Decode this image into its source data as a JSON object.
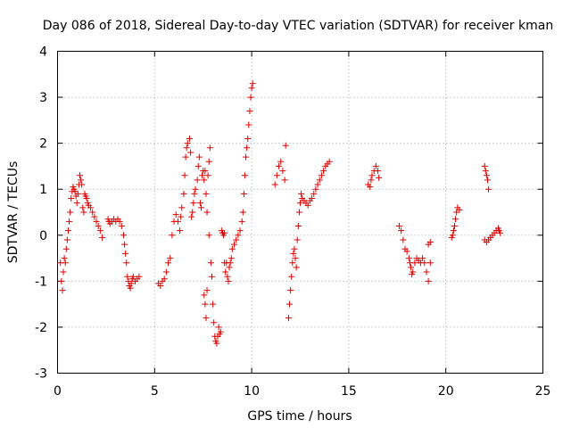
{
  "chart_data": {
    "type": "scatter",
    "title": "Day 086 of 2018, Sidereal Day-to-day VTEC variation (SDTVAR) for receiver kman",
    "xlabel": "GPS time / hours",
    "ylabel": "SDTVAR / TECUs",
    "xlim": [
      0,
      25
    ],
    "ylim": [
      -3,
      4
    ],
    "xticks": [
      0,
      5,
      10,
      15,
      20,
      25
    ],
    "xtick_labels": [
      "0",
      "5",
      "10",
      "15",
      "20",
      "25"
    ],
    "yticks": [
      -3,
      -2,
      -1,
      0,
      1,
      2,
      3,
      4
    ],
    "ytick_labels": [
      "-3",
      "-2",
      "-1",
      "0",
      "1",
      "2",
      "3",
      "4"
    ],
    "grid": true,
    "marker": "+",
    "color": "#e00000",
    "series": [
      {
        "name": "kman",
        "points": [
          [
            0.15,
            -0.6
          ],
          [
            0.2,
            -1.0
          ],
          [
            0.25,
            -1.2
          ],
          [
            0.3,
            -0.8
          ],
          [
            0.35,
            -0.5
          ],
          [
            0.4,
            -0.6
          ],
          [
            0.45,
            -0.3
          ],
          [
            0.5,
            -0.1
          ],
          [
            0.55,
            0.1
          ],
          [
            0.6,
            0.3
          ],
          [
            0.65,
            0.5
          ],
          [
            0.7,
            0.8
          ],
          [
            0.75,
            0.95
          ],
          [
            0.8,
            1.05
          ],
          [
            0.85,
            1.0
          ],
          [
            0.9,
            0.95
          ],
          [
            0.95,
            0.85
          ],
          [
            1.0,
            0.7
          ],
          [
            1.05,
            0.9
          ],
          [
            1.1,
            1.1
          ],
          [
            1.15,
            1.3
          ],
          [
            1.2,
            1.2
          ],
          [
            1.25,
            1.1
          ],
          [
            1.3,
            0.6
          ],
          [
            1.35,
            0.5
          ],
          [
            1.4,
            0.9
          ],
          [
            1.45,
            0.85
          ],
          [
            1.5,
            0.8
          ],
          [
            1.55,
            0.7
          ],
          [
            1.6,
            0.65
          ],
          [
            1.7,
            0.6
          ],
          [
            1.8,
            0.5
          ],
          [
            1.9,
            0.4
          ],
          [
            2.0,
            0.3
          ],
          [
            2.1,
            0.2
          ],
          [
            2.2,
            0.1
          ],
          [
            2.3,
            -0.05
          ],
          [
            2.6,
            0.35
          ],
          [
            2.65,
            0.3
          ],
          [
            2.7,
            0.25
          ],
          [
            2.8,
            0.3
          ],
          [
            2.9,
            0.35
          ],
          [
            3.0,
            0.3
          ],
          [
            3.1,
            0.35
          ],
          [
            3.2,
            0.3
          ],
          [
            3.3,
            0.2
          ],
          [
            3.4,
            0.0
          ],
          [
            3.45,
            -0.2
          ],
          [
            3.5,
            -0.4
          ],
          [
            3.55,
            -0.6
          ],
          [
            3.6,
            -0.9
          ],
          [
            3.65,
            -1.0
          ],
          [
            3.7,
            -1.1
          ],
          [
            3.75,
            -1.15
          ],
          [
            3.8,
            -1.05
          ],
          [
            3.85,
            -0.95
          ],
          [
            3.9,
            -0.9
          ],
          [
            4.0,
            -1.0
          ],
          [
            4.1,
            -0.95
          ],
          [
            4.2,
            -0.9
          ],
          [
            5.2,
            -1.05
          ],
          [
            5.3,
            -1.1
          ],
          [
            5.4,
            -1.0
          ],
          [
            5.5,
            -0.95
          ],
          [
            5.6,
            -0.8
          ],
          [
            5.7,
            -0.6
          ],
          [
            5.8,
            -0.5
          ],
          [
            5.9,
            0.0
          ],
          [
            6.0,
            0.3
          ],
          [
            6.1,
            0.45
          ],
          [
            6.2,
            0.3
          ],
          [
            6.3,
            0.1
          ],
          [
            6.35,
            0.4
          ],
          [
            6.4,
            0.6
          ],
          [
            6.5,
            0.9
          ],
          [
            6.55,
            1.3
          ],
          [
            6.6,
            1.7
          ],
          [
            6.65,
            1.9
          ],
          [
            6.7,
            2.0
          ],
          [
            6.8,
            2.1
          ],
          [
            6.85,
            1.8
          ],
          [
            6.9,
            0.4
          ],
          [
            6.95,
            0.5
          ],
          [
            7.0,
            0.7
          ],
          [
            7.05,
            0.9
          ],
          [
            7.1,
            1.0
          ],
          [
            7.2,
            1.2
          ],
          [
            7.25,
            1.5
          ],
          [
            7.3,
            1.7
          ],
          [
            7.35,
            0.7
          ],
          [
            7.4,
            0.6
          ],
          [
            7.45,
            1.3
          ],
          [
            7.5,
            1.4
          ],
          [
            7.55,
            1.2
          ],
          [
            7.6,
            1.4
          ],
          [
            7.65,
            0.9
          ],
          [
            7.7,
            0.5
          ],
          [
            7.75,
            1.3
          ],
          [
            7.8,
            1.6
          ],
          [
            7.85,
            1.9
          ],
          [
            7.55,
            -1.3
          ],
          [
            7.6,
            -1.5
          ],
          [
            7.65,
            -1.8
          ],
          [
            7.7,
            -1.2
          ],
          [
            7.8,
            0.0
          ],
          [
            7.9,
            -0.6
          ],
          [
            7.95,
            -0.9
          ],
          [
            8.0,
            -1.5
          ],
          [
            8.05,
            -1.9
          ],
          [
            8.1,
            -2.2
          ],
          [
            8.15,
            -2.3
          ],
          [
            8.2,
            -2.35
          ],
          [
            8.25,
            -2.2
          ],
          [
            8.3,
            -2.0
          ],
          [
            8.35,
            -2.15
          ],
          [
            8.4,
            -2.1
          ],
          [
            8.45,
            0.1
          ],
          [
            8.5,
            0.05
          ],
          [
            8.55,
            0.0
          ],
          [
            8.6,
            0.05
          ],
          [
            8.6,
            -0.6
          ],
          [
            8.65,
            -0.8
          ],
          [
            8.7,
            -0.6
          ],
          [
            8.75,
            -0.9
          ],
          [
            8.8,
            -1.0
          ],
          [
            8.85,
            -0.7
          ],
          [
            8.9,
            -0.6
          ],
          [
            8.95,
            -0.5
          ],
          [
            9.0,
            -0.3
          ],
          [
            9.1,
            -0.2
          ],
          [
            9.2,
            -0.1
          ],
          [
            9.3,
            0.0
          ],
          [
            9.4,
            0.1
          ],
          [
            9.5,
            0.3
          ],
          [
            9.55,
            0.5
          ],
          [
            9.6,
            0.9
          ],
          [
            9.65,
            1.3
          ],
          [
            9.7,
            1.7
          ],
          [
            9.75,
            1.9
          ],
          [
            9.8,
            2.1
          ],
          [
            9.85,
            2.4
          ],
          [
            9.9,
            2.7
          ],
          [
            9.95,
            3.0
          ],
          [
            10.0,
            3.2
          ],
          [
            10.05,
            3.3
          ],
          [
            11.2,
            1.1
          ],
          [
            11.3,
            1.3
          ],
          [
            11.4,
            1.5
          ],
          [
            11.5,
            1.6
          ],
          [
            11.6,
            1.4
          ],
          [
            11.7,
            1.2
          ],
          [
            11.75,
            1.95
          ],
          [
            11.9,
            -1.8
          ],
          [
            11.95,
            -1.5
          ],
          [
            12.0,
            -1.2
          ],
          [
            12.05,
            -0.9
          ],
          [
            12.1,
            -0.6
          ],
          [
            12.15,
            -0.4
          ],
          [
            12.2,
            -0.3
          ],
          [
            12.25,
            -0.5
          ],
          [
            12.3,
            -0.7
          ],
          [
            12.35,
            -0.1
          ],
          [
            12.4,
            0.2
          ],
          [
            12.45,
            0.5
          ],
          [
            12.5,
            0.7
          ],
          [
            12.55,
            0.9
          ],
          [
            12.6,
            0.8
          ],
          [
            12.7,
            0.75
          ],
          [
            12.8,
            0.7
          ],
          [
            12.9,
            0.65
          ],
          [
            13.0,
            0.75
          ],
          [
            13.1,
            0.8
          ],
          [
            13.2,
            0.9
          ],
          [
            13.3,
            1.0
          ],
          [
            13.4,
            1.1
          ],
          [
            13.5,
            1.2
          ],
          [
            13.6,
            1.3
          ],
          [
            13.7,
            1.4
          ],
          [
            13.8,
            1.5
          ],
          [
            13.9,
            1.55
          ],
          [
            14.0,
            1.6
          ],
          [
            16.0,
            1.1
          ],
          [
            16.1,
            1.05
          ],
          [
            16.15,
            1.2
          ],
          [
            16.2,
            1.3
          ],
          [
            16.3,
            1.4
          ],
          [
            16.4,
            1.5
          ],
          [
            16.5,
            1.4
          ],
          [
            16.55,
            1.25
          ],
          [
            17.6,
            0.2
          ],
          [
            17.7,
            0.1
          ],
          [
            17.8,
            -0.1
          ],
          [
            17.9,
            -0.3
          ],
          [
            18.0,
            -0.35
          ],
          [
            18.1,
            -0.5
          ],
          [
            18.15,
            -0.6
          ],
          [
            18.2,
            -0.7
          ],
          [
            18.25,
            -0.85
          ],
          [
            18.3,
            -0.8
          ],
          [
            18.4,
            -0.6
          ],
          [
            18.5,
            -0.5
          ],
          [
            18.6,
            -0.55
          ],
          [
            18.7,
            -0.6
          ],
          [
            18.8,
            -0.5
          ],
          [
            18.9,
            -0.6
          ],
          [
            19.0,
            -0.8
          ],
          [
            19.1,
            -1.0
          ],
          [
            19.1,
            -0.2
          ],
          [
            19.2,
            -0.15
          ],
          [
            19.2,
            -0.6
          ],
          [
            20.3,
            -0.05
          ],
          [
            20.35,
            0.0
          ],
          [
            20.4,
            0.1
          ],
          [
            20.45,
            0.2
          ],
          [
            20.5,
            0.35
          ],
          [
            20.55,
            0.5
          ],
          [
            20.6,
            0.6
          ],
          [
            20.7,
            0.55
          ],
          [
            22.0,
            1.5
          ],
          [
            22.05,
            1.4
          ],
          [
            22.1,
            1.3
          ],
          [
            22.15,
            1.2
          ],
          [
            22.2,
            1.0
          ],
          [
            22.0,
            -0.1
          ],
          [
            22.1,
            -0.15
          ],
          [
            22.2,
            -0.1
          ],
          [
            22.3,
            -0.05
          ],
          [
            22.4,
            0.0
          ],
          [
            22.5,
            0.05
          ],
          [
            22.6,
            0.1
          ],
          [
            22.7,
            0.15
          ],
          [
            22.75,
            0.1
          ],
          [
            22.8,
            0.05
          ]
        ]
      }
    ]
  }
}
